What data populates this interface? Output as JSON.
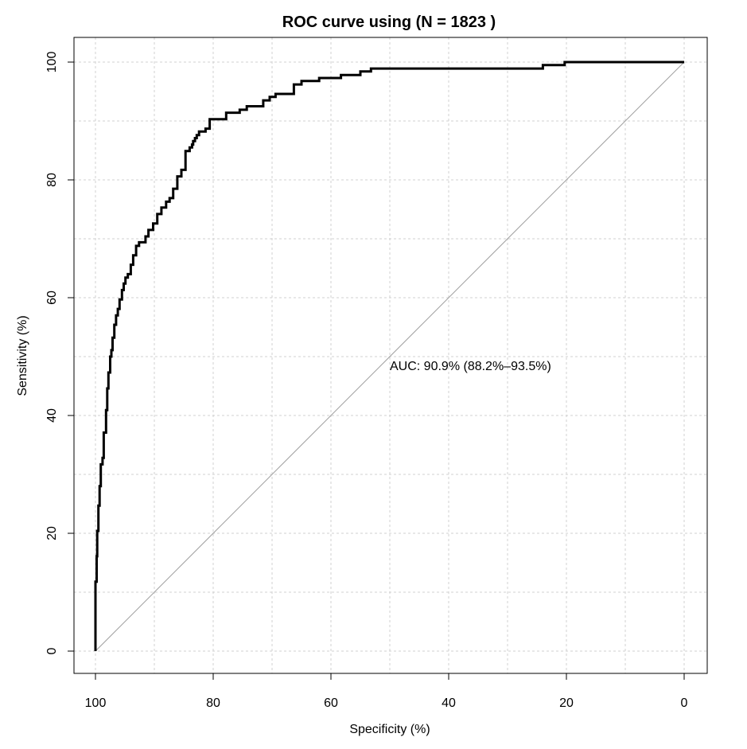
{
  "chart_data": {
    "type": "line",
    "title": "ROC curve using (N =  1823 )",
    "xlabel": "Specificity (%)",
    "ylabel": "Sensitivity (%)",
    "xlim": [
      100,
      0
    ],
    "ylim": [
      0,
      100
    ],
    "x_ticks": [
      100,
      80,
      60,
      40,
      20,
      0
    ],
    "y_ticks": [
      0,
      20,
      40,
      60,
      80,
      100
    ],
    "grid": true,
    "annotation": "AUC: 90.9% (88.2%–93.5%)",
    "reference_line": {
      "from": [
        100,
        0
      ],
      "to": [
        0,
        100
      ]
    },
    "series": [
      {
        "specificity": [
          100,
          100,
          99.8,
          99.7,
          99.5,
          99.3,
          99.1,
          98.8,
          98.6,
          98.2,
          98.0,
          97.8,
          97.5,
          97.3,
          97.1,
          96.8,
          96.5,
          96.2,
          95.9,
          95.5,
          95.2,
          94.9,
          94.5,
          94.0,
          93.6,
          93.1,
          92.6,
          92.0,
          91.5,
          91.0,
          90.2,
          89.5,
          88.8,
          88.0,
          87.4,
          86.8,
          86.1,
          85.4,
          84.7,
          84.0,
          83.6,
          83.4,
          83.1,
          82.8,
          82.4,
          81.9,
          81.3,
          80.6,
          79.6,
          78.4,
          77.8,
          75.5,
          74.3,
          73.6,
          72.8,
          71.5,
          70.4,
          69.4,
          68.8,
          67.6,
          66.3,
          65.0,
          64.5,
          62.0,
          58.3,
          56.5,
          55.0,
          53.2,
          52.6,
          50.0,
          40.0,
          30.0,
          24.0,
          20.3,
          19.9,
          10.0,
          0
        ],
        "sensitivity": [
          0,
          4.3,
          11.8,
          16.1,
          20.4,
          24.7,
          28.0,
          31.7,
          32.8,
          37.1,
          40.9,
          44.6,
          47.3,
          50.0,
          51.1,
          53.2,
          55.4,
          57.0,
          58.1,
          59.7,
          61.3,
          62.4,
          63.4,
          64.0,
          65.6,
          67.2,
          68.8,
          69.4,
          69.4,
          70.4,
          71.5,
          72.6,
          74.2,
          75.3,
          76.3,
          76.9,
          78.5,
          80.6,
          81.7,
          84.9,
          85.5,
          86.0,
          86.6,
          87.1,
          87.6,
          88.2,
          88.2,
          88.7,
          90.3,
          90.3,
          90.3,
          91.4,
          91.9,
          92.5,
          92.5,
          92.5,
          93.5,
          94.1,
          94.6,
          94.6,
          94.6,
          96.2,
          96.8,
          96.8,
          97.3,
          97.8,
          97.8,
          98.4,
          98.9,
          98.9,
          98.9,
          98.9,
          98.9,
          99.5,
          100,
          100,
          100
        ]
      }
    ]
  }
}
